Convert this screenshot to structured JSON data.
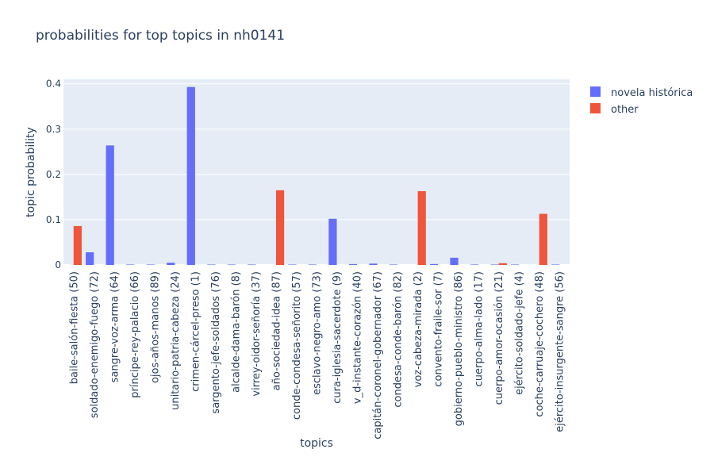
{
  "chart_data": {
    "type": "bar",
    "title": "probabilities for top topics in nh0141",
    "xlabel": "topics",
    "ylabel": "topic probability",
    "ylim": [
      0,
      0.41
    ],
    "yticks": [
      0,
      0.1,
      0.2,
      0.3,
      0.4
    ],
    "ytick_labels": [
      "0",
      "0.1",
      "0.2",
      "0.3",
      "0.4"
    ],
    "grid": true,
    "legend_position": "top-right",
    "categories": [
      "baile-salón-fiesta (50)",
      "soldado-enemigo-fuego (72)",
      "sangre-voz-arma (64)",
      "príncipe-rey-palacio (66)",
      "ojos-años-manos (89)",
      "unitario-patria-cabeza (24)",
      "crimen-cárcel-preso (1)",
      "sargento-jefe-soldados (76)",
      "alcalde-dama-barón (8)",
      "virrey-oidor-señoría (37)",
      "año-sociedad-idea (87)",
      "conde-condesa-señorito (57)",
      "esclavo-negro-amo (73)",
      "cura-iglesia-sacerdote (9)",
      "v_d-instante-corazón (40)",
      "capitán-coronel-gobernador (67)",
      "condesa-conde-barón (82)",
      "voz-cabeza-mirada (2)",
      "convento-fraile-sor (7)",
      "gobierno-pueblo-ministro (86)",
      "cuerpo-alma-lado (17)",
      "cuerpo-amor-ocasión (21)",
      "ejército-soldado-jefe (4)",
      "coche-carruaje-cochero (48)",
      "ejército-insurgente-sangre (56)"
    ],
    "series": [
      {
        "name": "novela histórica",
        "color": "#636efa",
        "values": [
          0,
          0.028,
          0.264,
          0.001,
          0.001,
          0.005,
          0.393,
          0.001,
          0.001,
          0.001,
          0,
          0.001,
          0.001,
          0.102,
          0.002,
          0.003,
          0.001,
          0,
          0.002,
          0.016,
          0.001,
          0.001,
          0.001,
          0,
          0.001
        ]
      },
      {
        "name": "other",
        "color": "#ef553b",
        "values": [
          0.086,
          0,
          0,
          0,
          0,
          0,
          0,
          0,
          0,
          0,
          0.165,
          0,
          0,
          0,
          0,
          0,
          0,
          0.163,
          0,
          0,
          0,
          0.004,
          0,
          0.113,
          0
        ]
      }
    ]
  }
}
